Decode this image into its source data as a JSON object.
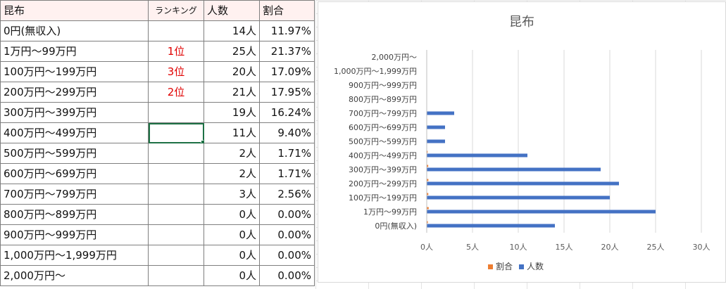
{
  "table": {
    "headers": [
      "昆布",
      "ランキング",
      "人数",
      "割合"
    ],
    "rows": [
      {
        "label": "0円(無収入)",
        "rank": "",
        "count": "14人",
        "pct": "11.97%"
      },
      {
        "label": "1万円～99万円",
        "rank": "1位",
        "count": "25人",
        "pct": "21.37%"
      },
      {
        "label": "100万円～199万円",
        "rank": "3位",
        "count": "20人",
        "pct": "17.09%"
      },
      {
        "label": "200万円～299万円",
        "rank": "2位",
        "count": "21人",
        "pct": "17.95%"
      },
      {
        "label": "300万円～399万円",
        "rank": "",
        "count": "19人",
        "pct": "16.24%"
      },
      {
        "label": "400万円～499万円",
        "rank": "",
        "count": "11人",
        "pct": "9.40%"
      },
      {
        "label": "500万円～599万円",
        "rank": "",
        "count": "2人",
        "pct": "1.71%"
      },
      {
        "label": "600万円～699万円",
        "rank": "",
        "count": "2人",
        "pct": "1.71%"
      },
      {
        "label": "700万円～799万円",
        "rank": "",
        "count": "3人",
        "pct": "2.56%"
      },
      {
        "label": "800万円～899万円",
        "rank": "",
        "count": "0人",
        "pct": "0.00%"
      },
      {
        "label": "900万円～999万円",
        "rank": "",
        "count": "0人",
        "pct": "0.00%"
      },
      {
        "label": "1,000万円～1,999万円",
        "rank": "",
        "count": "0人",
        "pct": "0.00%"
      },
      {
        "label": "2,000万円～",
        "rank": "",
        "count": "0人",
        "pct": "0.00%"
      }
    ]
  },
  "colors": {
    "series_count": "#4472c4",
    "series_pct": "#ed7d31",
    "rank_text": "#e00000",
    "header_fill": "#fff1f0",
    "selection": "#1e7145"
  },
  "chart_data": {
    "type": "bar",
    "orientation": "horizontal",
    "title": "昆布",
    "categories": [
      "0円(無収入)",
      "1万円～99万円",
      "100万円～199万円",
      "200万円～299万円",
      "300万円～399万円",
      "400万円～499万円",
      "500万円～599万円",
      "600万円～699万円",
      "700万円～799万円",
      "800万円～899万円",
      "900万円～999万円",
      "1,000万円～1,999万円",
      "2,000万円～"
    ],
    "series": [
      {
        "name": "人数",
        "values": [
          14,
          25,
          20,
          21,
          19,
          11,
          2,
          2,
          3,
          0,
          0,
          0,
          0
        ]
      },
      {
        "name": "割合",
        "values": [
          0.1197,
          0.2137,
          0.1709,
          0.1795,
          0.1624,
          0.094,
          0.0171,
          0.0171,
          0.0256,
          0,
          0,
          0,
          0
        ]
      }
    ],
    "x_ticks": [
      "0人",
      "5人",
      "10人",
      "15人",
      "20人",
      "25人",
      "30人"
    ],
    "xlim": [
      0,
      30
    ],
    "legend": [
      "割合",
      "人数"
    ],
    "legend_position": "bottom",
    "grid": true
  }
}
